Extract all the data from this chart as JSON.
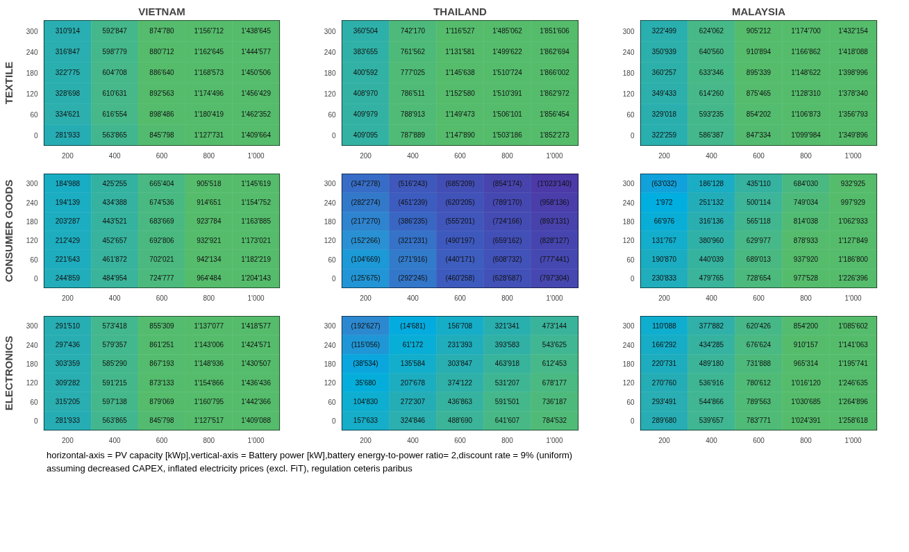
{
  "chart_data": [
    {
      "type": "heatmap",
      "title": "VIETNAM",
      "ylabel": "TEXTILE",
      "categories": [
        "200",
        "400",
        "600",
        "800",
        "1'000"
      ],
      "y_categories": [
        "300",
        "240",
        "180",
        "120",
        "60",
        "0"
      ],
      "cells": [
        [
          310914,
          592847,
          874780,
          1156712,
          1438645
        ],
        [
          316847,
          598779,
          880712,
          1162645,
          1444577
        ],
        [
          322775,
          604708,
          886640,
          1168573,
          1450506
        ],
        [
          328698,
          610631,
          892563,
          1174496,
          1456429
        ],
        [
          334621,
          616554,
          898486,
          1180419,
          1462352
        ],
        [
          281933,
          563865,
          845798,
          1127731,
          1409664
        ]
      ],
      "cell_labels": [
        [
          "310'914",
          "592'847",
          "874'780",
          "1'156'712",
          "1'438'645"
        ],
        [
          "316'847",
          "598'779",
          "880'712",
          "1'162'645",
          "1'444'577"
        ],
        [
          "322'775",
          "604'708",
          "886'640",
          "1'168'573",
          "1'450'506"
        ],
        [
          "328'698",
          "610'631",
          "892'563",
          "1'174'496",
          "1'456'429"
        ],
        [
          "334'621",
          "616'554",
          "898'486",
          "1'180'419",
          "1'462'352"
        ],
        [
          "281'933",
          "563'865",
          "845'798",
          "1'127'731",
          "1'409'664"
        ]
      ]
    },
    {
      "type": "heatmap",
      "title": "THAILAND",
      "categories": [
        "200",
        "400",
        "600",
        "800",
        "1'000"
      ],
      "y_categories": [
        "300",
        "240",
        "180",
        "120",
        "60",
        "0"
      ],
      "cells": [
        [
          360504,
          742170,
          1116527,
          1485062,
          1851606
        ],
        [
          383655,
          761562,
          1131581,
          1499622,
          1862694
        ],
        [
          400592,
          777025,
          1145638,
          1510724,
          1866002
        ],
        [
          408970,
          786511,
          1152580,
          1510391,
          1862972
        ],
        [
          409979,
          788913,
          1149473,
          1506101,
          1856454
        ],
        [
          409095,
          787889,
          1147890,
          1503186,
          1852273
        ]
      ],
      "cell_labels": [
        [
          "360'504",
          "742'170",
          "1'116'527",
          "1'485'062",
          "1'851'606"
        ],
        [
          "383'655",
          "761'562",
          "1'131'581",
          "1'499'622",
          "1'862'694"
        ],
        [
          "400'592",
          "777'025",
          "1'145'638",
          "1'510'724",
          "1'866'002"
        ],
        [
          "408'970",
          "786'511",
          "1'152'580",
          "1'510'391",
          "1'862'972"
        ],
        [
          "409'979",
          "788'913",
          "1'149'473",
          "1'506'101",
          "1'856'454"
        ],
        [
          "409'095",
          "787'889",
          "1'147'890",
          "1'503'186",
          "1'852'273"
        ]
      ]
    },
    {
      "type": "heatmap",
      "title": "MALAYSIA",
      "categories": [
        "200",
        "400",
        "600",
        "800",
        "1'000"
      ],
      "y_categories": [
        "300",
        "240",
        "180",
        "120",
        "60",
        "0"
      ],
      "cells": [
        [
          322499,
          624062,
          905212,
          1174700,
          1432154
        ],
        [
          350939,
          640560,
          910894,
          1166862,
          1418088
        ],
        [
          360257,
          633346,
          895339,
          1148622,
          1398996
        ],
        [
          349433,
          614260,
          875465,
          1128310,
          1378340
        ],
        [
          329018,
          593235,
          854202,
          1106873,
          1356793
        ],
        [
          322259,
          586387,
          847334,
          1099984,
          1349896
        ]
      ],
      "cell_labels": [
        [
          "322'499",
          "624'062",
          "905'212",
          "1'174'700",
          "1'432'154"
        ],
        [
          "350'939",
          "640'560",
          "910'894",
          "1'166'862",
          "1'418'088"
        ],
        [
          "360'257",
          "633'346",
          "895'339",
          "1'148'622",
          "1'398'996"
        ],
        [
          "349'433",
          "614'260",
          "875'465",
          "1'128'310",
          "1'378'340"
        ],
        [
          "329'018",
          "593'235",
          "854'202",
          "1'106'873",
          "1'356'793"
        ],
        [
          "322'259",
          "586'387",
          "847'334",
          "1'099'984",
          "1'349'896"
        ]
      ]
    },
    {
      "type": "heatmap",
      "ylabel": "CONSUMER GOODS",
      "categories": [
        "200",
        "400",
        "600",
        "800",
        "1'000"
      ],
      "y_categories": [
        "300",
        "240",
        "180",
        "120",
        "60",
        "0"
      ],
      "cells": [
        [
          184988,
          425255,
          665404,
          905518,
          1145619
        ],
        [
          194139,
          434388,
          674536,
          914651,
          1154752
        ],
        [
          203287,
          443521,
          683669,
          923784,
          1163885
        ],
        [
          212429,
          452657,
          692806,
          932921,
          1173021
        ],
        [
          221643,
          461872,
          702021,
          942134,
          1182219
        ],
        [
          244859,
          484954,
          724777,
          964484,
          1204143
        ]
      ],
      "cell_labels": [
        [
          "184'988",
          "425'255",
          "665'404",
          "905'518",
          "1'145'619"
        ],
        [
          "194'139",
          "434'388",
          "674'536",
          "914'651",
          "1'154'752"
        ],
        [
          "203'287",
          "443'521",
          "683'669",
          "923'784",
          "1'163'885"
        ],
        [
          "212'429",
          "452'657",
          "692'806",
          "932'921",
          "1'173'021"
        ],
        [
          "221'643",
          "461'872",
          "702'021",
          "942'134",
          "1'182'219"
        ],
        [
          "244'859",
          "484'954",
          "724'777",
          "964'484",
          "1'204'143"
        ]
      ]
    },
    {
      "type": "heatmap",
      "categories": [
        "200",
        "400",
        "600",
        "800",
        "1'000"
      ],
      "y_categories": [
        "300",
        "240",
        "180",
        "120",
        "60",
        "0"
      ],
      "cells": [
        [
          -347278,
          -516243,
          -685209,
          -854174,
          -1023140
        ],
        [
          -282274,
          -451239,
          -620205,
          -789170,
          -958136
        ],
        [
          -217270,
          -386235,
          -555201,
          -724166,
          -893131
        ],
        [
          -152266,
          -321231,
          -490197,
          -659162,
          -828127
        ],
        [
          -104669,
          -271916,
          -440171,
          -608732,
          -777441
        ],
        [
          -125675,
          -292245,
          -460258,
          -628687,
          -797304
        ]
      ],
      "cell_labels": [
        [
          "(347'278)",
          "(516'243)",
          "(685'209)",
          "(854'174)",
          "(1'023'140)"
        ],
        [
          "(282'274)",
          "(451'239)",
          "(620'205)",
          "(789'170)",
          "(958'136)"
        ],
        [
          "(217'270)",
          "(386'235)",
          "(555'201)",
          "(724'166)",
          "(893'131)"
        ],
        [
          "(152'266)",
          "(321'231)",
          "(490'197)",
          "(659'162)",
          "(828'127)"
        ],
        [
          "(104'669)",
          "(271'916)",
          "(440'171)",
          "(608'732)",
          "(777'441)"
        ],
        [
          "(125'675)",
          "(292'245)",
          "(460'258)",
          "(628'687)",
          "(797'304)"
        ]
      ]
    },
    {
      "type": "heatmap",
      "categories": [
        "200",
        "400",
        "600",
        "800",
        "1'000"
      ],
      "y_categories": [
        "300",
        "240",
        "180",
        "120",
        "60",
        "0"
      ],
      "cells": [
        [
          -63032,
          186128,
          435110,
          684030,
          932925
        ],
        [
          1972,
          251132,
          500114,
          749034,
          997929
        ],
        [
          66976,
          316136,
          565118,
          814038,
          1062933
        ],
        [
          131767,
          380960,
          629977,
          878933,
          1127849
        ],
        [
          190870,
          440039,
          689013,
          937920,
          1186800
        ],
        [
          230833,
          479765,
          728654,
          977528,
          1226396
        ]
      ],
      "cell_labels": [
        [
          "(63'032)",
          "186'128",
          "435'110",
          "684'030",
          "932'925"
        ],
        [
          "1'972",
          "251'132",
          "500'114",
          "749'034",
          "997'929"
        ],
        [
          "66'976",
          "316'136",
          "565'118",
          "814'038",
          "1'062'933"
        ],
        [
          "131'767",
          "380'960",
          "629'977",
          "878'933",
          "1'127'849"
        ],
        [
          "190'870",
          "440'039",
          "689'013",
          "937'920",
          "1'186'800"
        ],
        [
          "230'833",
          "479'765",
          "728'654",
          "977'528",
          "1'226'396"
        ]
      ]
    },
    {
      "type": "heatmap",
      "ylabel": "ELECTRONICS",
      "categories": [
        "200",
        "400",
        "600",
        "800",
        "1'000"
      ],
      "y_categories": [
        "300",
        "240",
        "180",
        "120",
        "60",
        "0"
      ],
      "cells": [
        [
          291510,
          573418,
          855309,
          1137077,
          1418577
        ],
        [
          297436,
          579357,
          861251,
          1143006,
          1424571
        ],
        [
          303359,
          585290,
          867193,
          1148936,
          1430507
        ],
        [
          309282,
          591215,
          873133,
          1154866,
          1436436
        ],
        [
          315205,
          597138,
          879069,
          1160795,
          1442366
        ],
        [
          281933,
          563865,
          845798,
          1127517,
          1409088
        ]
      ],
      "cell_labels": [
        [
          "291'510",
          "573'418",
          "855'309",
          "1'137'077",
          "1'418'577"
        ],
        [
          "297'436",
          "579'357",
          "861'251",
          "1'143'006",
          "1'424'571"
        ],
        [
          "303'359",
          "585'290",
          "867'193",
          "1'148'936",
          "1'430'507"
        ],
        [
          "309'282",
          "591'215",
          "873'133",
          "1'154'866",
          "1'436'436"
        ],
        [
          "315'205",
          "597'138",
          "879'069",
          "1'160'795",
          "1'442'366"
        ],
        [
          "281'933",
          "563'865",
          "845'798",
          "1'127'517",
          "1'409'088"
        ]
      ]
    },
    {
      "type": "heatmap",
      "categories": [
        "200",
        "400",
        "600",
        "800",
        "1'000"
      ],
      "y_categories": [
        "300",
        "240",
        "180",
        "120",
        "60",
        "0"
      ],
      "cells": [
        [
          -192627,
          -14681,
          156708,
          321341,
          473144
        ],
        [
          -115056,
          61172,
          231393,
          393583,
          543625
        ],
        [
          -38534,
          135584,
          303847,
          463918,
          612453
        ],
        [
          35680,
          207678,
          374122,
          531207,
          678177
        ],
        [
          104830,
          272307,
          436863,
          591501,
          736187
        ],
        [
          157633,
          324846,
          488690,
          641607,
          784532
        ]
      ],
      "cell_labels": [
        [
          "(192'627)",
          "(14'681)",
          "156'708",
          "321'341",
          "473'144"
        ],
        [
          "(115'056)",
          "61'172",
          "231'393",
          "393'583",
          "543'625"
        ],
        [
          "(38'534)",
          "135'584",
          "303'847",
          "463'918",
          "612'453"
        ],
        [
          "35'680",
          "207'678",
          "374'122",
          "531'207",
          "678'177"
        ],
        [
          "104'830",
          "272'307",
          "436'863",
          "591'501",
          "736'187"
        ],
        [
          "157'633",
          "324'846",
          "488'690",
          "641'607",
          "784'532"
        ]
      ]
    },
    {
      "type": "heatmap",
      "categories": [
        "200",
        "400",
        "600",
        "800",
        "1'000"
      ],
      "y_categories": [
        "300",
        "240",
        "180",
        "120",
        "60",
        "0"
      ],
      "cells": [
        [
          110088,
          377882,
          620426,
          854200,
          1085602
        ],
        [
          166292,
          434285,
          676624,
          910157,
          1141063
        ],
        [
          220731,
          489180,
          731888,
          965314,
          1195741
        ],
        [
          270760,
          536916,
          780612,
          1016120,
          1246635
        ],
        [
          293491,
          544866,
          789563,
          1030685,
          1264896
        ],
        [
          289680,
          539657,
          783771,
          1024391,
          1258618
        ]
      ],
      "cell_labels": [
        [
          "110'088",
          "377'882",
          "620'426",
          "854'200",
          "1'085'602"
        ],
        [
          "166'292",
          "434'285",
          "676'624",
          "910'157",
          "1'141'063"
        ],
        [
          "220'731",
          "489'180",
          "731'888",
          "965'314",
          "1'195'741"
        ],
        [
          "270'760",
          "536'916",
          "780'612",
          "1'016'120",
          "1'246'635"
        ],
        [
          "293'491",
          "544'866",
          "789'563",
          "1'030'685",
          "1'264'896"
        ],
        [
          "289'680",
          "539'657",
          "783'771",
          "1'024'391",
          "1'258'618"
        ]
      ],
      "annotations": [
        "horizontal-axis = PV capacity [kWp],vertical-axis = Battery power [kW],battery energy-to-power ratio= 2,discount rate = 9% (uniform)",
        "assuming decreased CAPEX, inflated electricity prices (excl. FiT), regulation ceteris paribus"
      ]
    }
  ]
}
